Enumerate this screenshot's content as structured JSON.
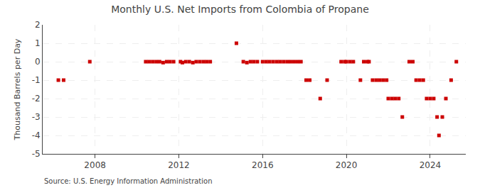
{
  "chart_data": {
    "type": "scatter",
    "title": "Monthly U.S. Net Imports from Colombia of Propane",
    "ylabel": "Thousand Barrels per Day",
    "annotations": [
      "Source: U.S. Energy Information Administration"
    ],
    "x": [
      2006.25,
      2006.5,
      2007.75,
      2010.42,
      2010.58,
      2010.75,
      2010.92,
      2011.08,
      2011.25,
      2011.42,
      2011.58,
      2011.75,
      2012.08,
      2012.17,
      2012.33,
      2012.5,
      2012.67,
      2012.83,
      2013.0,
      2013.17,
      2013.33,
      2013.5,
      2014.75,
      2015.08,
      2015.25,
      2015.42,
      2015.58,
      2015.75,
      2016.0,
      2016.17,
      2016.33,
      2016.5,
      2016.67,
      2016.83,
      2017.0,
      2017.17,
      2017.33,
      2017.5,
      2017.67,
      2017.83,
      2018.08,
      2018.25,
      2018.75,
      2019.08,
      2019.75,
      2019.92,
      2020.0,
      2020.17,
      2020.33,
      2020.67,
      2020.83,
      2021.0,
      2021.08,
      2021.25,
      2021.42,
      2021.58,
      2021.75,
      2021.92,
      2022.0,
      2022.17,
      2022.33,
      2022.5,
      2022.67,
      2023.0,
      2023.17,
      2023.33,
      2023.5,
      2023.67,
      2023.83,
      2024.0,
      2024.17,
      2024.33,
      2024.42,
      2024.58,
      2024.75,
      2025.0,
      2025.25
    ],
    "values": [
      -1,
      -1,
      0,
      0,
      0,
      0,
      0,
      0,
      -0.05,
      0,
      0,
      0,
      0,
      -0.05,
      0,
      0,
      -0.05,
      0,
      0,
      0,
      0,
      0,
      1,
      0,
      -0.05,
      0,
      0,
      0,
      0,
      0,
      0,
      0,
      0,
      0,
      0,
      0,
      0,
      0,
      0,
      0,
      -1,
      -1,
      -2,
      -1,
      0,
      0,
      0,
      0,
      0,
      -1,
      0,
      0,
      0,
      -1,
      -1,
      -1,
      -1,
      -1,
      -2,
      -2,
      -2,
      -2,
      -3,
      0,
      0,
      -1,
      -1,
      -1,
      -2,
      -2,
      -2,
      -3,
      -4,
      -3,
      -2,
      -1,
      0
    ],
    "color": "#cc0000",
    "marker": "square",
    "xlim": [
      2005.5,
      2025.7
    ],
    "xticks": [
      2008,
      2012,
      2016,
      2020,
      2024
    ],
    "ylim": [
      -5,
      2
    ],
    "yticks": [
      -5,
      -4,
      -3,
      -2,
      -1,
      0,
      1,
      2
    ],
    "grid": true
  }
}
